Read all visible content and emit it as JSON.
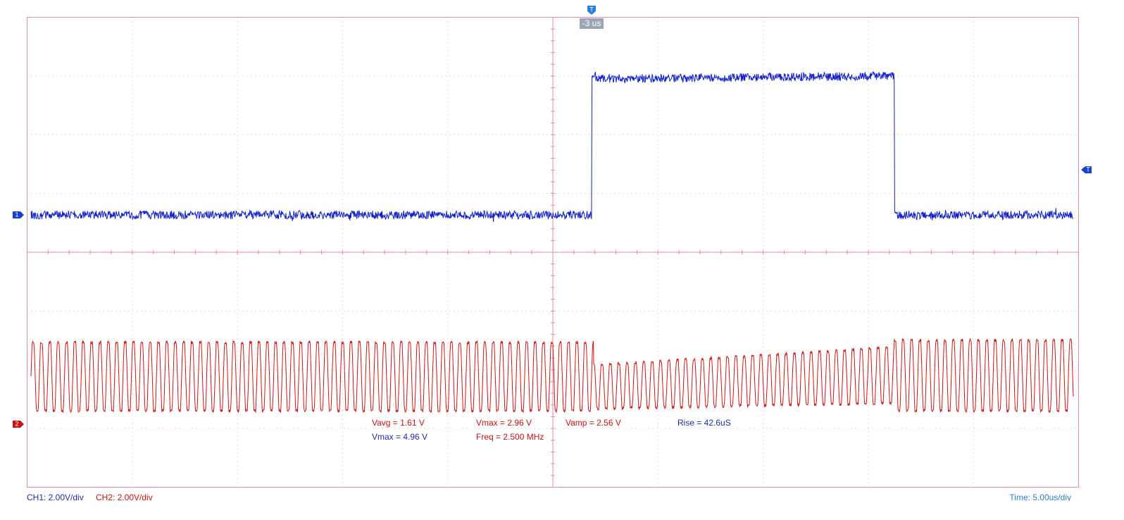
{
  "trigger": {
    "marker": "T",
    "offset": "-3 us"
  },
  "level_marker": "T",
  "channels": [
    {
      "marker": "1"
    },
    {
      "marker": "2"
    }
  ],
  "measurements": [
    {
      "text": "Vavg = 1.61 V"
    },
    {
      "text": "Vmax = 2.96 V"
    },
    {
      "text": "Vamp = 2.56 V"
    },
    {
      "text": "Rise = 42.6uS"
    },
    {
      "text": "Vmax = 4.96 V"
    },
    {
      "text": "Freq = 2.500 MHz"
    }
  ],
  "footer": {
    "ch1": "CH1: 2.00V/div",
    "ch2": "CH2: 2.00V/div",
    "time": "Time: 5.00us/div"
  }
}
